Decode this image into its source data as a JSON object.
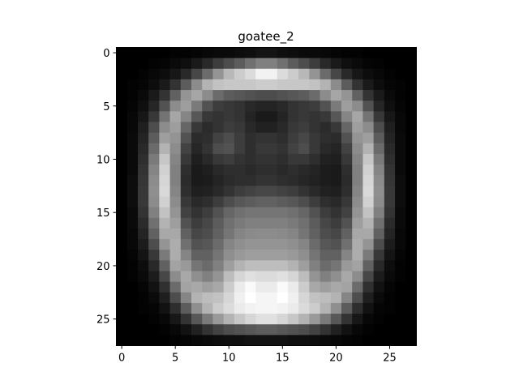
{
  "chart_data": {
    "type": "heatmap",
    "title": "goatee_2",
    "colormap": "gray",
    "value_range": [
      0,
      1
    ],
    "x_ticks": [
      "0",
      "5",
      "10",
      "15",
      "20",
      "25"
    ],
    "y_ticks": [
      "0",
      "5",
      "10",
      "15",
      "20",
      "25"
    ],
    "xlim": [
      -0.5,
      27.5
    ],
    "ylim": [
      27.5,
      -0.5
    ],
    "grid": false,
    "legend": "none",
    "rows": [
      [
        0.0,
        0.0,
        0.0,
        0.0,
        0.0,
        0.01,
        0.01,
        0.02,
        0.03,
        0.04,
        0.04,
        0.05,
        0.06,
        0.08,
        0.08,
        0.06,
        0.05,
        0.04,
        0.04,
        0.03,
        0.02,
        0.01,
        0.01,
        0.0,
        0.0,
        0.0,
        0.0,
        0.0
      ],
      [
        0.0,
        0.0,
        0.0,
        0.01,
        0.02,
        0.04,
        0.06,
        0.1,
        0.16,
        0.24,
        0.3,
        0.36,
        0.44,
        0.5,
        0.5,
        0.44,
        0.36,
        0.3,
        0.24,
        0.16,
        0.1,
        0.06,
        0.04,
        0.02,
        0.01,
        0.0,
        0.0,
        0.0
      ],
      [
        0.0,
        0.0,
        0.01,
        0.03,
        0.05,
        0.09,
        0.16,
        0.28,
        0.42,
        0.58,
        0.72,
        0.8,
        0.86,
        0.95,
        0.95,
        0.86,
        0.8,
        0.72,
        0.58,
        0.42,
        0.28,
        0.16,
        0.09,
        0.05,
        0.03,
        0.01,
        0.0,
        0.0
      ],
      [
        0.0,
        0.01,
        0.02,
        0.05,
        0.1,
        0.2,
        0.36,
        0.55,
        0.7,
        0.76,
        0.78,
        0.78,
        0.78,
        0.8,
        0.8,
        0.78,
        0.78,
        0.78,
        0.76,
        0.7,
        0.55,
        0.36,
        0.2,
        0.1,
        0.05,
        0.02,
        0.01,
        0.0
      ],
      [
        0.0,
        0.01,
        0.04,
        0.1,
        0.2,
        0.38,
        0.58,
        0.65,
        0.55,
        0.42,
        0.36,
        0.34,
        0.32,
        0.3,
        0.3,
        0.32,
        0.34,
        0.36,
        0.42,
        0.55,
        0.65,
        0.58,
        0.38,
        0.2,
        0.1,
        0.04,
        0.01,
        0.0
      ],
      [
        0.0,
        0.02,
        0.06,
        0.15,
        0.32,
        0.55,
        0.62,
        0.48,
        0.32,
        0.24,
        0.22,
        0.2,
        0.16,
        0.14,
        0.14,
        0.16,
        0.2,
        0.22,
        0.24,
        0.32,
        0.48,
        0.62,
        0.55,
        0.32,
        0.15,
        0.06,
        0.02,
        0.0
      ],
      [
        0.0,
        0.03,
        0.09,
        0.22,
        0.45,
        0.65,
        0.52,
        0.34,
        0.22,
        0.2,
        0.22,
        0.2,
        0.14,
        0.1,
        0.1,
        0.14,
        0.2,
        0.22,
        0.2,
        0.22,
        0.34,
        0.52,
        0.65,
        0.45,
        0.22,
        0.09,
        0.03,
        0.0
      ],
      [
        0.0,
        0.03,
        0.12,
        0.3,
        0.55,
        0.62,
        0.4,
        0.22,
        0.17,
        0.2,
        0.24,
        0.22,
        0.16,
        0.13,
        0.13,
        0.16,
        0.22,
        0.24,
        0.2,
        0.17,
        0.22,
        0.4,
        0.62,
        0.55,
        0.3,
        0.12,
        0.03,
        0.0
      ],
      [
        0.0,
        0.04,
        0.14,
        0.36,
        0.62,
        0.58,
        0.32,
        0.17,
        0.18,
        0.26,
        0.3,
        0.24,
        0.18,
        0.2,
        0.2,
        0.18,
        0.24,
        0.28,
        0.22,
        0.18,
        0.17,
        0.32,
        0.58,
        0.62,
        0.36,
        0.14,
        0.04,
        0.0
      ],
      [
        0.0,
        0.04,
        0.16,
        0.42,
        0.7,
        0.55,
        0.26,
        0.15,
        0.2,
        0.3,
        0.32,
        0.24,
        0.18,
        0.22,
        0.22,
        0.2,
        0.26,
        0.3,
        0.22,
        0.16,
        0.14,
        0.26,
        0.55,
        0.7,
        0.42,
        0.16,
        0.04,
        0.0
      ],
      [
        0.0,
        0.04,
        0.18,
        0.48,
        0.78,
        0.52,
        0.22,
        0.12,
        0.16,
        0.22,
        0.24,
        0.2,
        0.18,
        0.2,
        0.2,
        0.18,
        0.22,
        0.22,
        0.18,
        0.13,
        0.12,
        0.22,
        0.52,
        0.78,
        0.48,
        0.18,
        0.04,
        0.0
      ],
      [
        0.0,
        0.04,
        0.2,
        0.52,
        0.82,
        0.5,
        0.18,
        0.1,
        0.12,
        0.16,
        0.18,
        0.18,
        0.16,
        0.18,
        0.18,
        0.16,
        0.18,
        0.16,
        0.14,
        0.11,
        0.1,
        0.18,
        0.5,
        0.82,
        0.52,
        0.2,
        0.04,
        0.0
      ],
      [
        0.0,
        0.05,
        0.21,
        0.55,
        0.84,
        0.5,
        0.17,
        0.1,
        0.11,
        0.14,
        0.17,
        0.18,
        0.18,
        0.2,
        0.2,
        0.18,
        0.17,
        0.15,
        0.13,
        0.11,
        0.1,
        0.17,
        0.5,
        0.84,
        0.55,
        0.21,
        0.05,
        0.0
      ],
      [
        0.0,
        0.05,
        0.22,
        0.56,
        0.85,
        0.52,
        0.18,
        0.12,
        0.13,
        0.16,
        0.2,
        0.24,
        0.26,
        0.28,
        0.28,
        0.26,
        0.24,
        0.2,
        0.16,
        0.13,
        0.12,
        0.18,
        0.52,
        0.85,
        0.56,
        0.22,
        0.05,
        0.0
      ],
      [
        0.0,
        0.05,
        0.22,
        0.55,
        0.82,
        0.55,
        0.22,
        0.16,
        0.18,
        0.24,
        0.3,
        0.34,
        0.36,
        0.38,
        0.38,
        0.36,
        0.34,
        0.3,
        0.24,
        0.18,
        0.16,
        0.22,
        0.55,
        0.82,
        0.55,
        0.22,
        0.05,
        0.0
      ],
      [
        0.0,
        0.04,
        0.2,
        0.5,
        0.76,
        0.58,
        0.26,
        0.2,
        0.24,
        0.32,
        0.4,
        0.44,
        0.46,
        0.46,
        0.46,
        0.46,
        0.44,
        0.4,
        0.32,
        0.24,
        0.2,
        0.26,
        0.58,
        0.76,
        0.5,
        0.2,
        0.04,
        0.0
      ],
      [
        0.0,
        0.04,
        0.17,
        0.44,
        0.7,
        0.62,
        0.32,
        0.24,
        0.28,
        0.36,
        0.44,
        0.48,
        0.5,
        0.5,
        0.5,
        0.5,
        0.48,
        0.44,
        0.36,
        0.28,
        0.24,
        0.32,
        0.62,
        0.7,
        0.44,
        0.17,
        0.04,
        0.0
      ],
      [
        0.0,
        0.03,
        0.14,
        0.38,
        0.66,
        0.66,
        0.38,
        0.28,
        0.3,
        0.38,
        0.46,
        0.52,
        0.54,
        0.55,
        0.55,
        0.54,
        0.52,
        0.46,
        0.38,
        0.3,
        0.28,
        0.38,
        0.66,
        0.66,
        0.38,
        0.14,
        0.03,
        0.0
      ],
      [
        0.0,
        0.03,
        0.11,
        0.3,
        0.58,
        0.68,
        0.44,
        0.32,
        0.34,
        0.42,
        0.52,
        0.56,
        0.58,
        0.58,
        0.58,
        0.58,
        0.56,
        0.52,
        0.42,
        0.34,
        0.32,
        0.44,
        0.68,
        0.58,
        0.3,
        0.11,
        0.03,
        0.0
      ],
      [
        0.0,
        0.02,
        0.08,
        0.22,
        0.48,
        0.68,
        0.52,
        0.38,
        0.38,
        0.46,
        0.56,
        0.6,
        0.62,
        0.62,
        0.62,
        0.62,
        0.6,
        0.56,
        0.46,
        0.38,
        0.38,
        0.52,
        0.68,
        0.48,
        0.22,
        0.08,
        0.02,
        0.0
      ],
      [
        0.0,
        0.01,
        0.05,
        0.16,
        0.38,
        0.64,
        0.6,
        0.46,
        0.42,
        0.5,
        0.62,
        0.7,
        0.74,
        0.74,
        0.74,
        0.74,
        0.7,
        0.62,
        0.5,
        0.42,
        0.46,
        0.6,
        0.64,
        0.38,
        0.16,
        0.05,
        0.01,
        0.0
      ],
      [
        0.0,
        0.01,
        0.04,
        0.11,
        0.28,
        0.55,
        0.66,
        0.56,
        0.5,
        0.58,
        0.74,
        0.84,
        0.88,
        0.86,
        0.86,
        0.88,
        0.84,
        0.74,
        0.58,
        0.5,
        0.56,
        0.66,
        0.55,
        0.28,
        0.11,
        0.04,
        0.01,
        0.0
      ],
      [
        0.0,
        0.0,
        0.02,
        0.07,
        0.19,
        0.42,
        0.64,
        0.66,
        0.62,
        0.66,
        0.8,
        0.92,
        0.98,
        0.92,
        0.92,
        0.98,
        0.92,
        0.8,
        0.66,
        0.62,
        0.66,
        0.64,
        0.42,
        0.19,
        0.07,
        0.02,
        0.0,
        0.0
      ],
      [
        0.0,
        0.0,
        0.01,
        0.04,
        0.12,
        0.3,
        0.52,
        0.7,
        0.74,
        0.76,
        0.84,
        0.94,
        1.0,
        0.96,
        0.96,
        1.0,
        0.94,
        0.84,
        0.76,
        0.74,
        0.7,
        0.52,
        0.3,
        0.12,
        0.04,
        0.01,
        0.0,
        0.0
      ],
      [
        0.0,
        0.0,
        0.01,
        0.02,
        0.07,
        0.18,
        0.36,
        0.56,
        0.7,
        0.8,
        0.86,
        0.92,
        0.95,
        0.96,
        0.96,
        0.95,
        0.92,
        0.86,
        0.8,
        0.7,
        0.56,
        0.36,
        0.18,
        0.07,
        0.02,
        0.01,
        0.0,
        0.0
      ],
      [
        0.0,
        0.0,
        0.0,
        0.01,
        0.03,
        0.09,
        0.2,
        0.34,
        0.48,
        0.6,
        0.7,
        0.78,
        0.84,
        0.88,
        0.88,
        0.84,
        0.78,
        0.7,
        0.6,
        0.48,
        0.34,
        0.2,
        0.09,
        0.03,
        0.01,
        0.0,
        0.0,
        0.0
      ],
      [
        0.0,
        0.0,
        0.0,
        0.0,
        0.01,
        0.03,
        0.07,
        0.13,
        0.2,
        0.26,
        0.3,
        0.32,
        0.34,
        0.36,
        0.36,
        0.34,
        0.32,
        0.3,
        0.26,
        0.2,
        0.13,
        0.07,
        0.03,
        0.01,
        0.0,
        0.0,
        0.0,
        0.0
      ],
      [
        0.0,
        0.0,
        0.0,
        0.0,
        0.0,
        0.01,
        0.02,
        0.03,
        0.04,
        0.05,
        0.06,
        0.06,
        0.07,
        0.07,
        0.07,
        0.07,
        0.06,
        0.06,
        0.05,
        0.04,
        0.03,
        0.02,
        0.01,
        0.0,
        0.0,
        0.0,
        0.0,
        0.0
      ]
    ]
  }
}
